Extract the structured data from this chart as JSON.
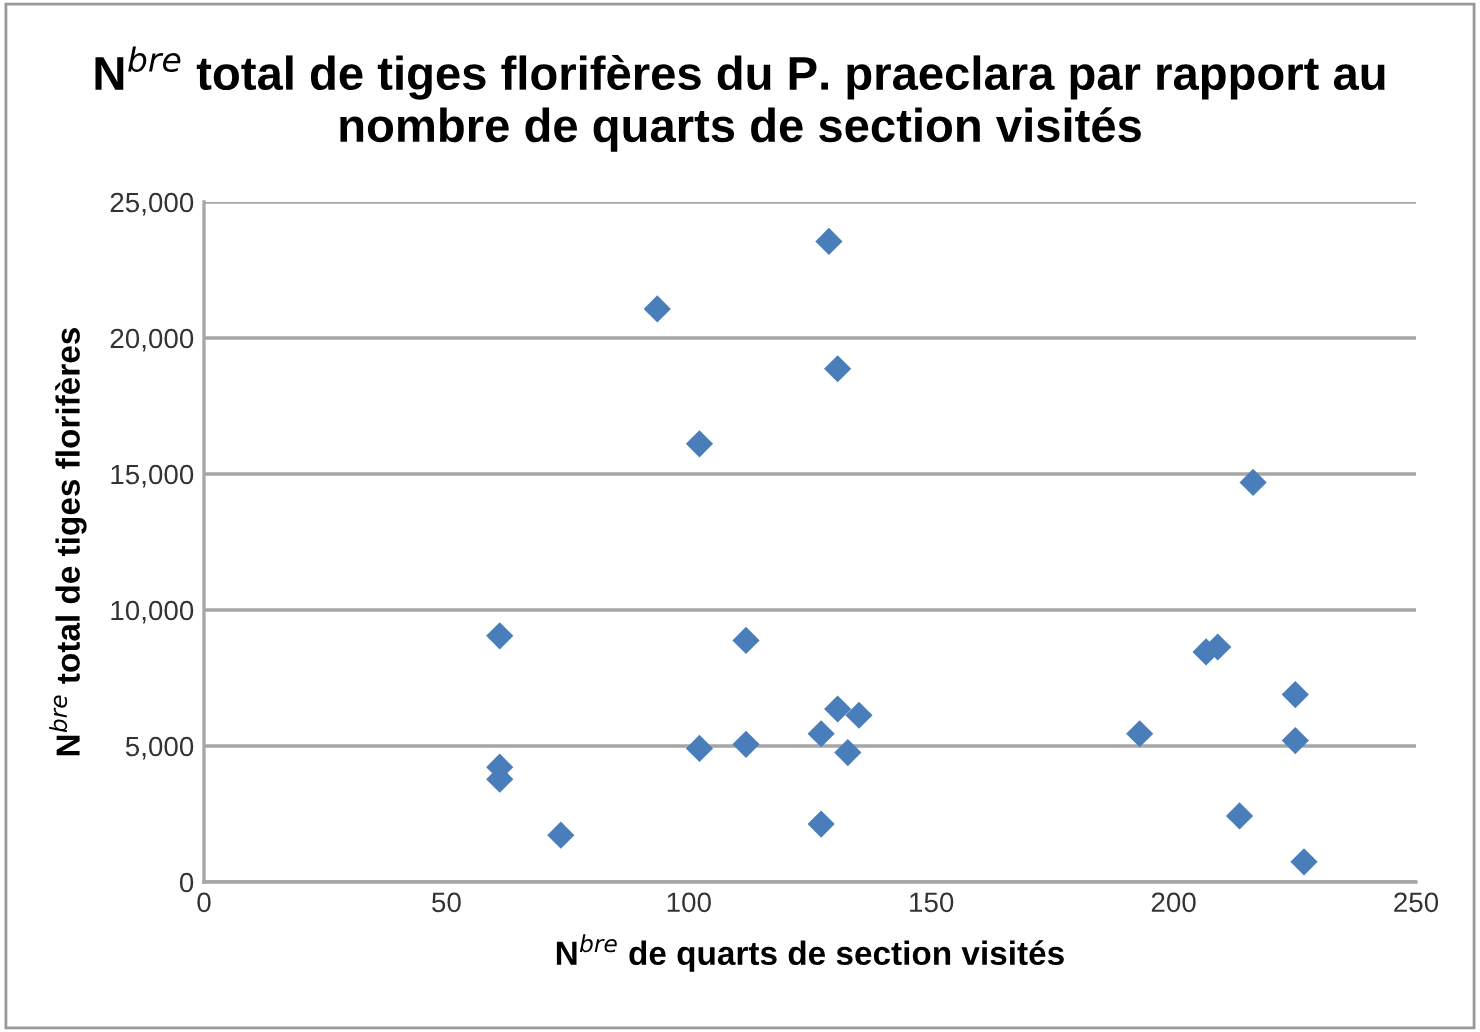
{
  "chart_data": {
    "type": "scatter",
    "title": "N$^{bre}$ total de tiges florifères du P. praeclara par rapport au nombre de quarts de section visités",
    "xlabel": "N$^{bre}$ de quarts de section visités",
    "ylabel": "N$^{bre}$ total de tiges florifères",
    "series": [
      {
        "color": "#4a7ebb",
        "x": [
          61,
          61,
          61,
          73.6,
          93.5,
          102.2,
          102.2,
          111.8,
          111.8,
          128.9,
          130.7,
          127.3,
          130.7,
          135.1,
          132.8,
          127.3,
          193,
          206.7,
          209.1,
          216.4,
          225.1,
          225.1,
          213.6,
          226.9
        ],
        "values": [
          9050,
          4220,
          3780,
          1720,
          21070,
          16110,
          4910,
          8880,
          5060,
          23550,
          18870,
          5450,
          6360,
          6130,
          4760,
          2130,
          5450,
          8460,
          8640,
          14690,
          6890,
          5200,
          2430,
          740
        ]
      }
    ],
    "xlim": [
      0,
      250
    ],
    "xticks": [
      0,
      50,
      100,
      150,
      200,
      250
    ],
    "ylim": [
      0,
      25000
    ],
    "yticks": [
      {
        "value": 0,
        "label": "0"
      },
      {
        "value": 5000,
        "label": "5,000"
      },
      {
        "value": 10000,
        "label": "10,000"
      },
      {
        "value": 15000,
        "label": "15,000"
      },
      {
        "value": 20000,
        "label": "20,000"
      },
      {
        "value": 25000,
        "label": "25,000"
      }
    ],
    "grid": "y",
    "marker": "diamond",
    "legend": false
  }
}
